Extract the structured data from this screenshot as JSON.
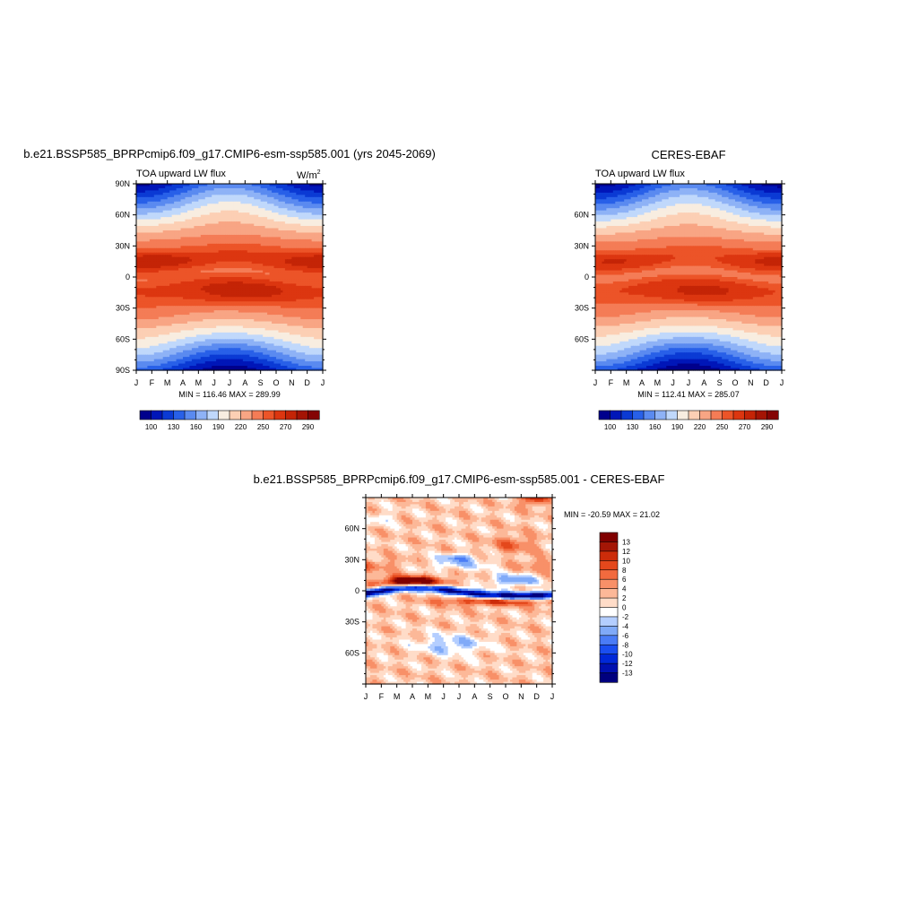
{
  "panels": [
    {
      "title": "b.e21.BSSP585_BPRPcmip6.f09_g17.CMIP6-esm-ssp585.001 (yrs 2045-2069)",
      "left_label": "TOA upward LW flux",
      "units_text": "W/m",
      "units_sup": "2",
      "stats": "MIN = 116.46 MAX = 289.99"
    },
    {
      "title": "CERES-EBAF",
      "left_label": "TOA upward LW flux",
      "stats": "MIN = 112.41 MAX = 285.07"
    },
    {
      "title": "b.e21.BSSP585_BPRPcmip6.f09_g17.CMIP6-esm-ssp585.001 - CERES-EBAF",
      "stats": "MIN = -20.59 MAX =  21.02"
    }
  ],
  "colors": {
    "abs_scale": [
      "#00008c",
      "#0016b8",
      "#0b3ad4",
      "#2860e8",
      "#5a8af0",
      "#8eb2f6",
      "#c0d8fb",
      "#f8ede0",
      "#fccfb4",
      "#f8a584",
      "#f47c56",
      "#ec5428",
      "#dc3610",
      "#c42406",
      "#a41404",
      "#840404"
    ],
    "diff_scale": [
      "#00007e",
      "#0010b0",
      "#0028d8",
      "#1a4ef0",
      "#4a7cf6",
      "#80aaf8",
      "#b4ceff",
      "#ffffff",
      "#ffdcc8",
      "#fcb898",
      "#f89068",
      "#f26a3e",
      "#e4481c",
      "#cc2c0a",
      "#a41606",
      "#800000"
    ]
  },
  "chart_data": [
    {
      "type": "heatmap",
      "title": "b.e21.BSSP585_BPRPcmip6.f09_g17.CMIP6-esm-ssp585.001 (yrs 2045-2069)",
      "variable": "TOA upward LW flux",
      "units": "W/m2",
      "x_ticks": [
        "J",
        "F",
        "M",
        "A",
        "M",
        "J",
        "J",
        "A",
        "S",
        "O",
        "N",
        "D",
        "J"
      ],
      "y_ticks": [
        "90N",
        "60N",
        "30N",
        "0",
        "30S",
        "60S",
        "90S"
      ],
      "min": 116.46,
      "max": 289.99,
      "colorbar_labels": [
        "100",
        "130",
        "160",
        "190",
        "220",
        "250",
        "270",
        "290"
      ],
      "features": {
        "north_subtropical_max_lat": 17,
        "south_subtropical_max_lat": -18,
        "equatorial_min_lat": 2,
        "antarctic_min_month": "Jul",
        "arctic_min_month": "Jan"
      }
    },
    {
      "type": "heatmap",
      "title": "CERES-EBAF",
      "variable": "TOA upward LW flux",
      "x_ticks": [
        "J",
        "F",
        "M",
        "A",
        "M",
        "J",
        "J",
        "A",
        "S",
        "O",
        "N",
        "D",
        "J"
      ],
      "y_ticks": [
        "60N",
        "30N",
        "0",
        "30S",
        "60S"
      ],
      "min": 112.41,
      "max": 285.07,
      "colorbar_labels": [
        "100",
        "130",
        "160",
        "190",
        "220",
        "250",
        "270",
        "290"
      ]
    },
    {
      "type": "heatmap",
      "title": "b.e21.BSSP585_BPRPcmip6.f09_g17.CMIP6-esm-ssp585.001 - CERES-EBAF",
      "x_ticks": [
        "J",
        "F",
        "M",
        "A",
        "M",
        "J",
        "J",
        "A",
        "S",
        "O",
        "N",
        "D",
        "J"
      ],
      "y_ticks": [
        "60N",
        "30N",
        "0",
        "30S",
        "60S"
      ],
      "min": -20.59,
      "max": 21.02,
      "colorbar_labels": [
        "13",
        "12",
        "10",
        "8",
        "6",
        "4",
        "2",
        "0",
        "-2",
        "-4",
        "-6",
        "-8",
        "-10",
        "-12",
        "-13"
      ]
    }
  ]
}
